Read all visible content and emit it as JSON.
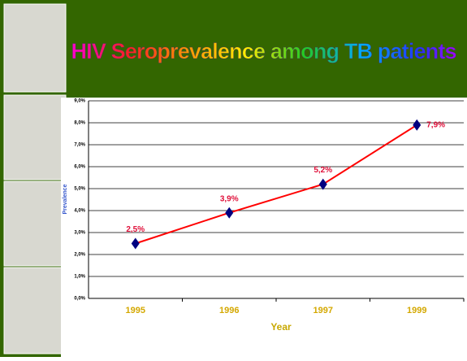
{
  "chart_data": {
    "type": "line",
    "title": "HIV Seroprevalence among TB patients",
    "x_label": "Year",
    "y_label": "Prevalence",
    "categories": [
      "1995",
      "1996",
      "1997",
      "1999"
    ],
    "series": [
      {
        "name": "Prevalence",
        "color": "#ff0000",
        "marker_color": "#000080",
        "values": [
          2.5,
          3.9,
          5.2,
          7.9
        ],
        "value_labels": [
          "2,5%",
          "3,9%",
          "5,2%",
          "7,9%"
        ]
      }
    ],
    "ylim": [
      0,
      9
    ],
    "yticks": [
      {
        "value": 0,
        "label": "0,0%"
      },
      {
        "value": 1,
        "label": "1,0%"
      },
      {
        "value": 2,
        "label": "2,0%"
      },
      {
        "value": 3,
        "label": "3,0%"
      },
      {
        "value": 4,
        "label": "4,0%"
      },
      {
        "value": 5,
        "label": "5,0%"
      },
      {
        "value": 6,
        "label": "6,0%"
      },
      {
        "value": 7,
        "label": "7,0%"
      },
      {
        "value": 8,
        "label": "8,0%"
      },
      {
        "value": 9,
        "label": "9,0%"
      }
    ],
    "grid": true
  }
}
